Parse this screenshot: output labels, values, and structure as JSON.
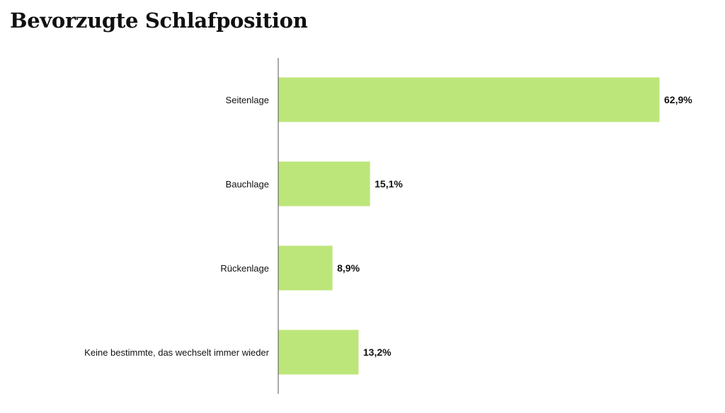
{
  "chart_data": {
    "type": "bar",
    "orientation": "horizontal",
    "title": "Bevorzugte Schlafposition",
    "categories": [
      "Seitenlage",
      "Bauchlage",
      "Rückenlage",
      "Keine bestimmte, das wechselt immer wieder"
    ],
    "values": [
      62.9,
      15.1,
      8.9,
      13.2
    ],
    "value_labels": [
      "62,9%",
      "15,1%",
      "8,9%",
      "13,2%"
    ],
    "xlim": [
      0,
      62.9
    ],
    "grid": false,
    "legend": "none",
    "bar_color": "#bde67a",
    "axis_color": "#555555"
  }
}
